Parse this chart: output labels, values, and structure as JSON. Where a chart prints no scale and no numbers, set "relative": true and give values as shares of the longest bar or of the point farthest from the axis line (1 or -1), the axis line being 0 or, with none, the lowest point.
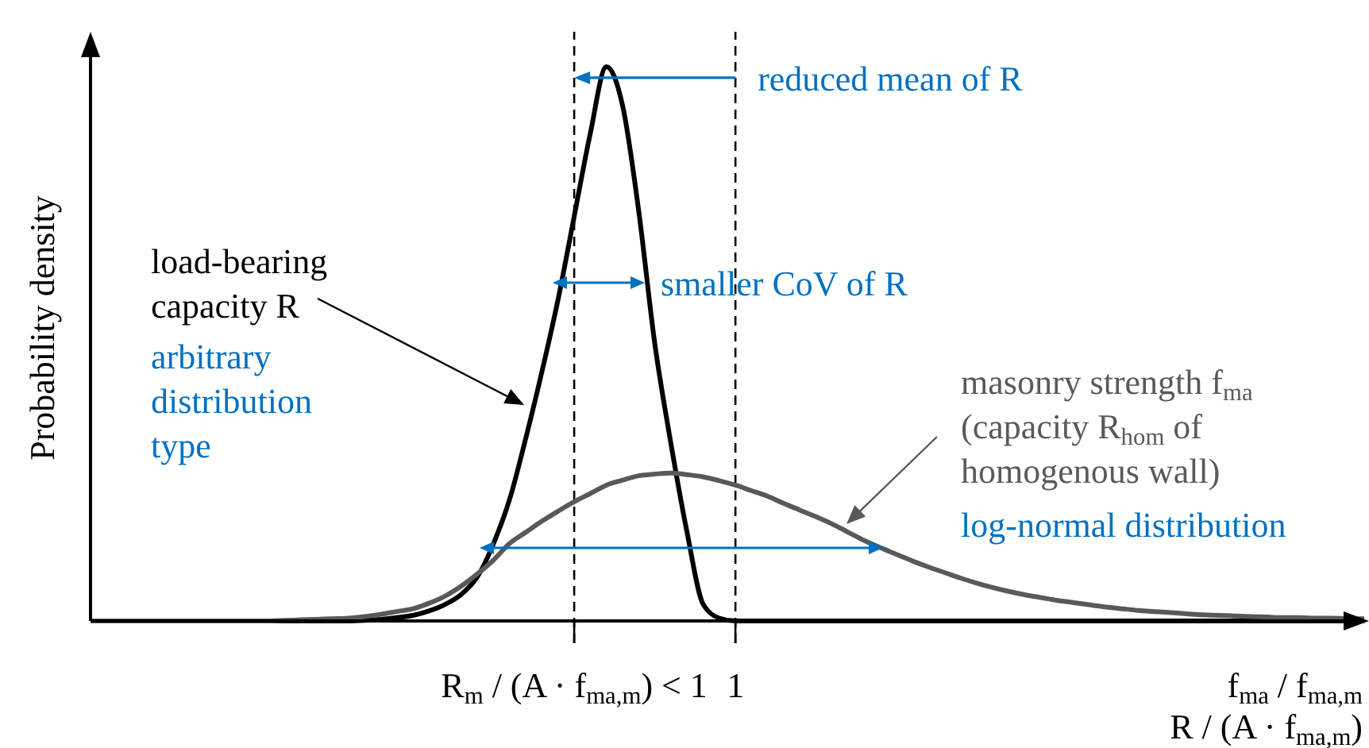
{
  "chart_data": {
    "type": "line",
    "relative": true,
    "legend": false,
    "grid": false,
    "ylabel": "Probability density",
    "xlabel": "f$_{ma}$ / f$_{ma,m}$\nR / (A · f$_{ma,m}$)",
    "categories": [
      null,
      null,
      null,
      null,
      null,
      null,
      null,
      null,
      null,
      null,
      null,
      null,
      null,
      null,
      null,
      null,
      null,
      null,
      null,
      null,
      null,
      null,
      null,
      null,
      null,
      null,
      null,
      null,
      null,
      null,
      "R$_{m}$ / (A · f$_{ma,m}$) < 1",
      null,
      null,
      null,
      null,
      null,
      null,
      null,
      null,
      null,
      "1",
      null,
      null,
      null,
      null,
      null,
      null,
      null,
      null,
      null,
      null,
      null,
      null,
      null,
      null,
      null,
      null,
      null,
      null,
      null,
      null,
      null,
      null,
      null,
      null,
      null,
      null,
      null,
      null,
      null,
      null,
      null,
      null,
      null,
      null,
      null,
      null,
      null,
      null,
      null
    ],
    "series": [
      {
        "name": "load-bearing capacity R",
        "color": "#000000",
        "values": [
          0,
          0,
          0,
          0,
          0,
          0,
          0,
          0,
          0,
          0,
          0,
          0,
          0,
          0,
          0,
          0,
          0,
          0.001,
          0.003,
          0.006,
          0.01,
          0.018,
          0.03,
          0.048,
          0.08,
          0.14,
          0.22,
          0.33,
          0.45,
          0.58,
          0.73,
          0.88,
          1,
          0.93,
          0.74,
          0.5,
          0.32,
          0.16,
          0.03,
          0.005,
          0,
          0,
          0,
          0,
          0,
          0,
          0,
          0,
          0,
          0,
          0,
          0,
          0,
          0,
          0,
          0,
          0,
          0,
          0,
          0,
          0,
          0,
          0,
          0,
          0,
          0,
          0,
          0,
          0,
          0,
          0,
          0,
          0,
          0,
          0,
          0,
          0,
          0,
          0,
          0
        ]
      },
      {
        "name": "masonry strength f$_{ma}$ (capacity R$_{hom}$ of homogenous wall)",
        "color": "#595959",
        "values": [
          0,
          0,
          0,
          0,
          0,
          0,
          0,
          0,
          0,
          0,
          0,
          0,
          0.001,
          0.002,
          0.003,
          0.004,
          0.005,
          0.008,
          0.012,
          0.017,
          0.022,
          0.032,
          0.045,
          0.063,
          0.085,
          0.11,
          0.14,
          0.16,
          0.18,
          0.198,
          0.215,
          0.23,
          0.245,
          0.254,
          0.262,
          0.265,
          0.267,
          0.264,
          0.26,
          0.253,
          0.245,
          0.235,
          0.225,
          0.212,
          0.2,
          0.188,
          0.175,
          0.16,
          0.145,
          0.132,
          0.12,
          0.108,
          0.097,
          0.087,
          0.077,
          0.068,
          0.06,
          0.053,
          0.047,
          0.042,
          0.037,
          0.033,
          0.029,
          0.025,
          0.022,
          0.019,
          0.017,
          0.015,
          0.013,
          0.011,
          0.01,
          0.009,
          0.008,
          0.007,
          0.006,
          0.006,
          0.005,
          0.005,
          0.004,
          0.004
        ]
      }
    ],
    "ref_lines": [
      {
        "axis": "x",
        "value": "R$_{m}$ / (A · f$_{ma,m}$) < 1",
        "line_style": "dashed",
        "color": "#000000"
      },
      {
        "axis": "x",
        "value": "1",
        "line_style": "dashed",
        "color": "#000000"
      }
    ],
    "annotations": [
      {
        "text": "reduced mean of R",
        "x": "1",
        "y": 0.98
      },
      "smaller CoV of R",
      "arbitrary distribution type",
      "log-normal distribution"
    ]
  }
}
